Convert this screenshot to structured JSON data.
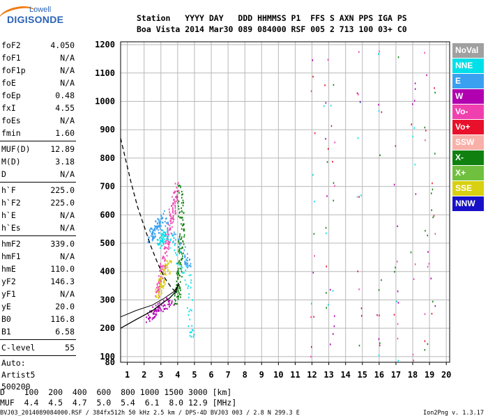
{
  "logo": {
    "line1": "Lowell",
    "line2": "DIGISONDE"
  },
  "header": {
    "line1": "Station   YYYY DAY   DDD HHMMSS P1  FFS S AXN PPS IGA PS",
    "line2": "Boa Vista 2014 Mar30 089 084000 RSF 005 2 713 100 03+ C0"
  },
  "params": [
    {
      "key": "foF2",
      "value": "4.050"
    },
    {
      "key": "foF1",
      "value": "N/A"
    },
    {
      "key": "foF1p",
      "value": "N/A"
    },
    {
      "key": "foE",
      "value": "N/A"
    },
    {
      "key": "foEp",
      "value": "0.48"
    },
    {
      "key": "fxI",
      "value": "4.55"
    },
    {
      "key": "foEs",
      "value": "N/A"
    },
    {
      "key": "fmin",
      "value": "1.60"
    },
    {
      "key": "MUF(D)",
      "value": "12.89"
    },
    {
      "key": "M(D)",
      "value": "3.18"
    },
    {
      "key": "D",
      "value": "N/A"
    },
    {
      "key": "h`F",
      "value": "225.0"
    },
    {
      "key": "h`F2",
      "value": "225.0"
    },
    {
      "key": "h`E",
      "value": "N/A"
    },
    {
      "key": "h`Es",
      "value": "N/A"
    },
    {
      "key": "hmF2",
      "value": "339.0"
    },
    {
      "key": "hmF1",
      "value": "N/A"
    },
    {
      "key": "hmE",
      "value": "110.0"
    },
    {
      "key": "yF2",
      "value": "146.3"
    },
    {
      "key": "yF1",
      "value": "N/A"
    },
    {
      "key": "yE",
      "value": "20.0"
    },
    {
      "key": "B0",
      "value": "116.8"
    },
    {
      "key": "B1",
      "value": "6.58"
    },
    {
      "key": "C-level",
      "value": "55"
    }
  ],
  "notes": [
    "Auto:",
    "Artist5",
    "500200"
  ],
  "legend": [
    {
      "label": "NoVal",
      "color": "#a0a0a0"
    },
    {
      "label": "NNE",
      "color": "#00e0e8"
    },
    {
      "label": "E",
      "color": "#3aa0f0"
    },
    {
      "label": "W",
      "color": "#b000b0"
    },
    {
      "label": "Vo-",
      "color": "#f040b0"
    },
    {
      "label": "Vo+",
      "color": "#e8102a"
    },
    {
      "label": "SSW",
      "color": "#f8b0a8"
    },
    {
      "label": "X-",
      "color": "#108010"
    },
    {
      "label": "X+",
      "color": "#70c040"
    },
    {
      "label": "SSE",
      "color": "#d8d010"
    },
    {
      "label": "NNW",
      "color": "#1810c8"
    }
  ],
  "muf_table": {
    "line1": "D    100  200  400  600  800 1000 1500 3000 [km]",
    "line2": "MUF  4.4  4.5  4.7  5.0  5.4  6.1  8.0 12.9 [MHz]"
  },
  "footer": {
    "left": "BVJ03_2014089084000.RSF / 384fx512h 50 kHz 2.5 km / DPS-4D BVJ03 003 / 2.8 N 299.3 E",
    "right": "Ion2Png v. 1.3.17"
  },
  "chart_data": {
    "type": "scatter",
    "xlim": [
      0.6,
      20.2
    ],
    "ylim": [
      80,
      1210
    ],
    "x_ticks": [
      1,
      2,
      3,
      4,
      5,
      6,
      7,
      8,
      9,
      10,
      11,
      12,
      13,
      14,
      15,
      16,
      17,
      18,
      19,
      20
    ],
    "y_ticks": [
      80,
      100,
      200,
      300,
      400,
      500,
      600,
      700,
      800,
      900,
      1000,
      1100,
      1200
    ],
    "grid": true,
    "legend_position": "right",
    "profile_curve": [
      [
        0.6,
        200
      ],
      [
        1.5,
        230
      ],
      [
        2.5,
        262
      ],
      [
        3.0,
        285
      ],
      [
        3.5,
        305
      ],
      [
        3.9,
        330
      ],
      [
        4.05,
        360
      ]
    ],
    "x_trace_curve": [
      [
        0.6,
        240
      ],
      [
        1.5,
        262
      ],
      [
        2.5,
        282
      ],
      [
        3.2,
        306
      ],
      [
        3.8,
        330
      ],
      [
        4.1,
        355
      ]
    ],
    "muf_curve": [
      [
        0.6,
        870
      ],
      [
        1.2,
        720
      ],
      [
        1.6,
        630
      ],
      [
        2.0,
        560
      ],
      [
        2.4,
        490
      ],
      [
        2.8,
        430
      ],
      [
        3.2,
        380
      ],
      [
        3.6,
        345
      ],
      [
        4.0,
        320
      ]
    ],
    "trace_clusters": [
      {
        "color": "#f040b0",
        "points": [
          [
            2.7,
            320
          ],
          [
            3.0,
            380
          ],
          [
            3.2,
            450
          ],
          [
            3.4,
            520
          ],
          [
            3.6,
            600
          ],
          [
            3.8,
            650
          ],
          [
            3.9,
            700
          ]
        ]
      },
      {
        "color": "#108010",
        "points": [
          [
            3.9,
            290
          ],
          [
            4.0,
            350
          ],
          [
            4.1,
            420
          ],
          [
            4.2,
            500
          ],
          [
            4.2,
            600
          ],
          [
            4.1,
            700
          ]
        ]
      },
      {
        "color": "#3aa0f0",
        "points": [
          [
            2.3,
            520
          ],
          [
            2.5,
            540
          ],
          [
            2.8,
            560
          ],
          [
            3.1,
            600
          ],
          [
            4.5,
            450
          ],
          [
            4.6,
            420
          ]
        ]
      },
      {
        "color": "#d8d010",
        "points": [
          [
            2.8,
            320
          ],
          [
            3.0,
            360
          ],
          [
            3.2,
            400
          ],
          [
            3.5,
            430
          ]
        ]
      },
      {
        "color": "#00e0e8",
        "points": [
          [
            2.9,
            500
          ],
          [
            3.1,
            520
          ],
          [
            3.3,
            540
          ],
          [
            4.6,
            380
          ],
          [
            4.8,
            160
          ]
        ]
      },
      {
        "color": "#b000b0",
        "points": [
          [
            2.2,
            240
          ],
          [
            2.6,
            260
          ],
          [
            3.0,
            280
          ],
          [
            3.6,
            300
          ]
        ]
      }
    ],
    "sparse_columns": [
      12,
      12.8,
      13.2,
      14.8,
      16,
      17,
      18,
      18.8,
      19.2
    ]
  }
}
